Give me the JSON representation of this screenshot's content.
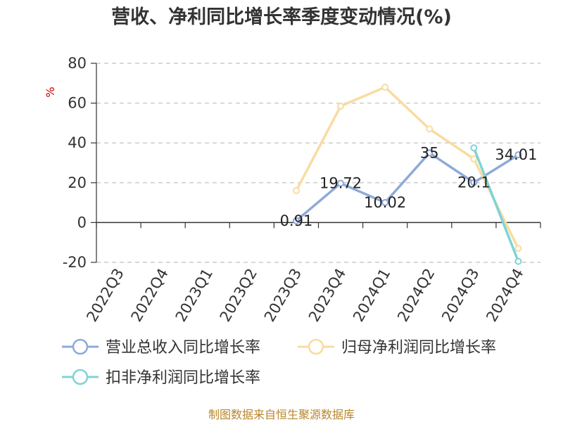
{
  "chart_data": {
    "type": "line",
    "title": "营收、净利同比增长率季度变动情况(%)",
    "ylabel": "%",
    "ylim": [
      -20,
      80
    ],
    "yticks": [
      -20,
      0,
      20,
      40,
      60,
      80
    ],
    "grid": true,
    "legend_position": "bottom",
    "categories": [
      "2022Q3",
      "2022Q4",
      "2023Q1",
      "2023Q2",
      "2023Q3",
      "2023Q4",
      "2024Q1",
      "2024Q2",
      "2024Q3",
      "2024Q4"
    ],
    "series": [
      {
        "name": "营业总收入同比增长率",
        "color": "#8eaad8",
        "values": [
          null,
          null,
          null,
          null,
          0.91,
          19.72,
          10.02,
          35,
          20.1,
          34.01
        ],
        "labels": [
          null,
          null,
          null,
          null,
          "0.91",
          "19.72",
          "10.02",
          "35",
          "20.1",
          "34.01"
        ]
      },
      {
        "name": "归母净利润同比增长率",
        "color": "#f8dca0",
        "values": [
          null,
          null,
          null,
          null,
          16,
          58.5,
          68,
          47,
          32,
          -13
        ],
        "labels": [
          null,
          null,
          null,
          null,
          null,
          null,
          null,
          null,
          null,
          null
        ]
      },
      {
        "name": "扣非净利润同比增长率",
        "color": "#7fd3d6",
        "values": [
          null,
          null,
          null,
          null,
          null,
          null,
          null,
          null,
          37.5,
          -19.5
        ],
        "labels": [
          null,
          null,
          null,
          null,
          null,
          null,
          null,
          null,
          null,
          null
        ]
      }
    ]
  },
  "footer": {
    "source": "制图数据来自恒生聚源数据库"
  }
}
